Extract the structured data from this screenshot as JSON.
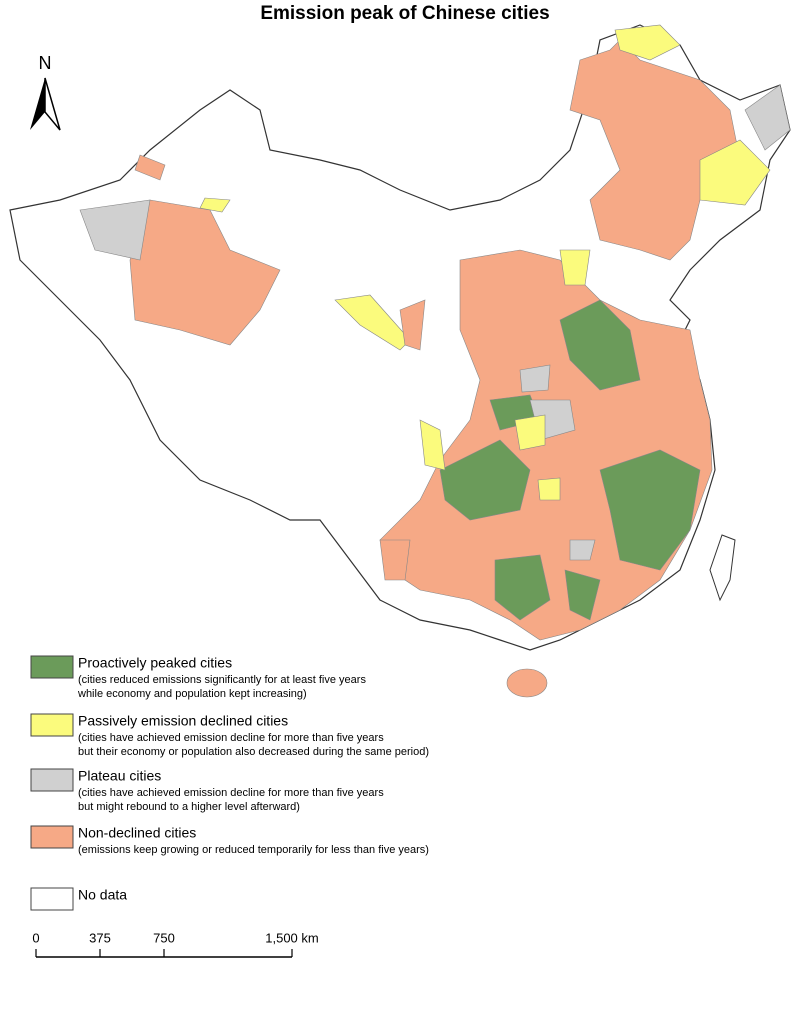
{
  "title": "Emission peak of Chinese cities",
  "north_arrow": "N",
  "legend": [
    {
      "label": "Proactively peaked cities",
      "description": [
        "(cities reduced emissions significantly for at least five years",
        "while economy and population kept increasing)"
      ],
      "color": "#6b9b5a"
    },
    {
      "label": "Passively emission declined cities",
      "description": [
        "(cities have achieved emission decline for more than five years",
        "but their economy or population also decreased during the same period)"
      ],
      "color": "#fbfb7d"
    },
    {
      "label": "Plateau cities",
      "description": [
        "(cities have achieved emission decline for more than five years",
        "but might rebound to a higher level afterward)"
      ],
      "color": "#d0d0d0"
    },
    {
      "label": "Non-declined cities",
      "description": [
        "(emissions keep growing or reduced temporarily for less than five years)"
      ],
      "color": "#f6a986"
    },
    {
      "label": "No data",
      "color": "#ffffff"
    }
  ],
  "scale_bar": {
    "ticks": [
      0,
      375,
      750,
      {
        "value": 1500,
        "label": "1,500 km"
      }
    ]
  }
}
